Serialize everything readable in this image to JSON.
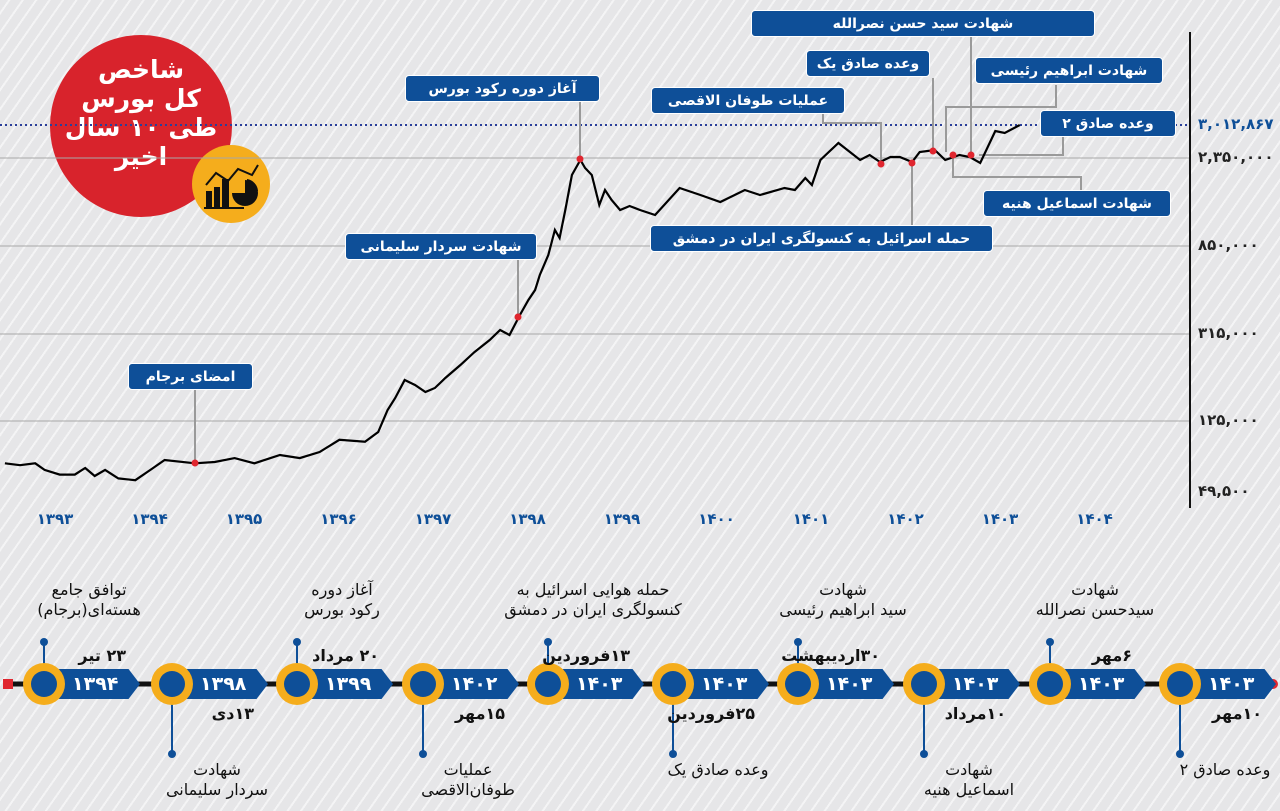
{
  "title": {
    "lines": [
      "شاخص",
      "کل بورس",
      "طی ۱۰ سال",
      "اخیر"
    ],
    "icon": "chart-analytics-icon"
  },
  "colors": {
    "accent_blue": "#0e4f98",
    "title_red": "#d8232c",
    "orange": "#f5ad1c",
    "marker_red": "#e0262f",
    "line": "#000000"
  },
  "chart_data": {
    "type": "line",
    "title": "شاخص کل بورس طی ۱۰ سال اخیر",
    "x_unit": "Jalali year",
    "x_ticks": [
      "۱۳۹۳",
      "۱۳۹۴",
      "۱۳۹۵",
      "۱۳۹۶",
      "۱۳۹۷",
      "۱۳۹۸",
      "۱۳۹۹",
      "۱۴۰۰",
      "۱۴۰۱",
      "۱۴۰۲",
      "۱۴۰۳",
      "۱۴۰۴"
    ],
    "x_tick_values": [
      1393,
      1394,
      1395,
      1396,
      1397,
      1398,
      1399,
      1400,
      1401,
      1402,
      1403,
      1404
    ],
    "y_ticks": [
      {
        "value": 49500,
        "label": "۴۹,۵۰۰"
      },
      {
        "value": 125000,
        "label": "۱۲۵,۰۰۰"
      },
      {
        "value": 315000,
        "label": "۳۱۵,۰۰۰"
      },
      {
        "value": 850000,
        "label": "۸۵۰,۰۰۰"
      },
      {
        "value": 2350000,
        "label": "۲,۳۵۰,۰۰۰"
      },
      {
        "value": 3012867,
        "label": "۳,۰۱۲,۸۶۷",
        "highlight": true
      }
    ],
    "y_scale": "nonlinear (uneven tick spacing)",
    "grid": true,
    "reference_line": {
      "value": 3012867,
      "style": "dotted"
    },
    "x": [
      1392.47,
      1392.63,
      1392.79,
      1392.89,
      1393.05,
      1393.21,
      1393.32,
      1393.42,
      1393.53,
      1393.67,
      1393.85,
      1394.01,
      1394.16,
      1394.48,
      1394.69,
      1394.9,
      1395.11,
      1395.38,
      1395.59,
      1395.8,
      1396.01,
      1396.28,
      1396.42,
      1396.52,
      1396.6,
      1396.7,
      1396.81,
      1396.92,
      1397.02,
      1397.13,
      1397.29,
      1397.44,
      1397.6,
      1397.71,
      1397.81,
      1397.92,
      1398.01,
      1398.08,
      1398.13,
      1398.22,
      1398.29,
      1398.34,
      1398.4,
      1398.47,
      1398.56,
      1398.61,
      1398.68,
      1398.76,
      1398.82,
      1398.89,
      1398.98,
      1399.08,
      1399.19,
      1399.35,
      1399.61,
      1399.83,
      1400.04,
      1400.3,
      1400.46,
      1400.72,
      1400.83,
      1400.94,
      1401.01,
      1401.1,
      1401.29,
      1401.52,
      1401.62,
      1401.73,
      1401.84,
      1401.94,
      1402.07,
      1402.15,
      1402.31,
      1402.42,
      1402.57,
      1402.68,
      1402.79,
      1402.95,
      1403.05,
      1403.21
    ],
    "values": [
      80000,
      78000,
      80000,
      73000,
      68000,
      68000,
      75000,
      66500,
      73000,
      64000,
      62000,
      73000,
      83500,
      80000,
      81400,
      85600,
      80000,
      88800,
      85600,
      92000,
      105000,
      103000,
      113300,
      149000,
      175200,
      214500,
      203600,
      188300,
      197000,
      218900,
      247300,
      275700,
      301900,
      339300,
      312800,
      430500,
      521700,
      582500,
      673700,
      795300,
      1122700,
      986400,
      1463600,
      2060200,
      2315900,
      2179500,
      2060200,
      1548800,
      1804500,
      1634000,
      1463600,
      1531800,
      1463600,
      1378400,
      1838600,
      1719300,
      1600000,
      1804500,
      1719300,
      1838600,
      1804500,
      2009100,
      1889800,
      2315900,
      2651300,
      2315900,
      2410300,
      2281800,
      2370100,
      2370100,
      2281800,
      2470500,
      2510700,
      2315900,
      2410300,
      2370100,
      2264700,
      2892300,
      2852200,
      3012867
    ]
  },
  "events": [
    {
      "label": "امضای برجام"
    },
    {
      "label": "شهادت سردار سلیمانی"
    },
    {
      "label": "آغاز دوره رکود بورس"
    },
    {
      "label": "عملیات طوفان الاقصی"
    },
    {
      "label": "حمله اسرائیل به کنسولگری ایران در دمشق"
    },
    {
      "label": "وعده صادق یک"
    },
    {
      "label": "شهادت ابراهیم رئیسی"
    },
    {
      "label": "شهادت اسماعیل هنیه"
    },
    {
      "label": "شهادت سید حسن نصرالله"
    },
    {
      "label": "وعده صادق ۲"
    }
  ],
  "timeline": [
    {
      "year": "۱۳۹۴",
      "date": "۲۳ تیر",
      "text": [
        "توافق جامع",
        "هسته‌ای(برجام)"
      ]
    },
    {
      "year": "۱۳۹۸",
      "date": "۱۳دی",
      "text": [
        "شهادت",
        "سردار سلیمانی"
      ]
    },
    {
      "year": "۱۳۹۹",
      "date": "۲۰ مرداد",
      "text": [
        "آغاز دوره",
        "رکود بورس"
      ]
    },
    {
      "year": "۱۴۰۲",
      "date": "۱۵مهر",
      "text": [
        "عملیات",
        "طوفان‌الاقصی"
      ]
    },
    {
      "year": "۱۴۰۳",
      "date": "۱۳فروردین",
      "text": [
        "حمله هوایی اسرائیل به",
        "کنسولگری ایران در دمشق"
      ]
    },
    {
      "year": "۱۴۰۳",
      "date": "۲۵فروردین",
      "text": [
        "وعده صادق یک"
      ]
    },
    {
      "year": "۱۴۰۳",
      "date": "۳۰اردیبهشت",
      "text": [
        "شهادت",
        "سید ابراهیم رئیسی"
      ]
    },
    {
      "year": "۱۴۰۳",
      "date": "۱۰مرداد",
      "text": [
        "شهادت",
        "اسماعیل هنیه"
      ]
    },
    {
      "year": "۱۴۰۳",
      "date": "۶مهر",
      "text": [
        "شهادت",
        "سیدحسن نصرالله"
      ]
    },
    {
      "year": "۱۴۰۳",
      "date": "۱۰مهر",
      "text": [
        "وعده صادق ۲"
      ]
    }
  ]
}
